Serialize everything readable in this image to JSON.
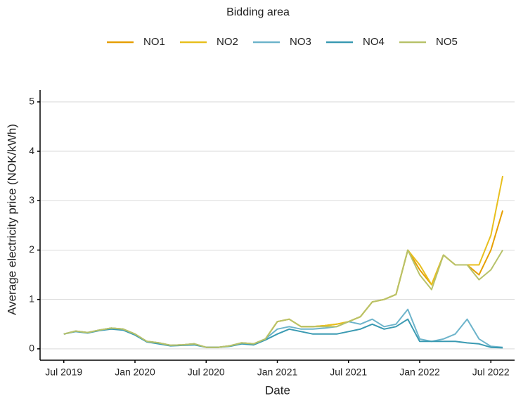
{
  "chart_data": {
    "type": "line",
    "legend_title": "Bidding area",
    "legend_position": "top",
    "x_label": "Date",
    "y_label": "Average electricity price (NOK/kWh)",
    "x": [
      "2019-07",
      "2019-08",
      "2019-09",
      "2019-10",
      "2019-11",
      "2019-12",
      "2020-01",
      "2020-02",
      "2020-03",
      "2020-04",
      "2020-05",
      "2020-06",
      "2020-07",
      "2020-08",
      "2020-09",
      "2020-10",
      "2020-11",
      "2020-12",
      "2021-01",
      "2021-02",
      "2021-03",
      "2021-04",
      "2021-05",
      "2021-06",
      "2021-07",
      "2021-08",
      "2021-09",
      "2021-10",
      "2021-11",
      "2021-12",
      "2022-01",
      "2022-02",
      "2022-03",
      "2022-04",
      "2022-05",
      "2022-06",
      "2022-07",
      "2022-08"
    ],
    "series": [
      {
        "name": "NO1",
        "color": "#e69f00",
        "values": [
          0.3,
          0.36,
          0.33,
          0.38,
          0.42,
          0.4,
          0.3,
          0.15,
          0.12,
          0.07,
          0.08,
          0.1,
          0.03,
          0.03,
          0.06,
          0.12,
          0.1,
          0.2,
          0.55,
          0.6,
          0.45,
          0.45,
          0.47,
          0.5,
          0.55,
          0.65,
          0.95,
          1.0,
          1.1,
          2.0,
          1.6,
          1.3,
          1.9,
          1.7,
          1.7,
          1.5,
          2.0,
          2.8
        ]
      },
      {
        "name": "NO2",
        "color": "#e8bf1e",
        "values": [
          0.3,
          0.36,
          0.33,
          0.38,
          0.42,
          0.4,
          0.3,
          0.15,
          0.12,
          0.07,
          0.08,
          0.1,
          0.03,
          0.03,
          0.06,
          0.12,
          0.1,
          0.2,
          0.55,
          0.6,
          0.45,
          0.45,
          0.47,
          0.5,
          0.55,
          0.65,
          0.95,
          1.0,
          1.1,
          2.0,
          1.7,
          1.3,
          1.9,
          1.7,
          1.7,
          1.7,
          2.3,
          3.5
        ]
      },
      {
        "name": "NO3",
        "color": "#6db4cb",
        "values": [
          0.3,
          0.36,
          0.33,
          0.38,
          0.42,
          0.4,
          0.3,
          0.15,
          0.12,
          0.07,
          0.08,
          0.1,
          0.03,
          0.03,
          0.06,
          0.12,
          0.1,
          0.2,
          0.4,
          0.45,
          0.4,
          0.4,
          0.42,
          0.45,
          0.55,
          0.5,
          0.6,
          0.45,
          0.5,
          0.8,
          0.2,
          0.15,
          0.2,
          0.3,
          0.6,
          0.2,
          0.05,
          0.03
        ]
      },
      {
        "name": "NO4",
        "color": "#3a9ab2",
        "values": [
          0.3,
          0.35,
          0.32,
          0.37,
          0.4,
          0.38,
          0.28,
          0.14,
          0.1,
          0.06,
          0.07,
          0.08,
          0.03,
          0.03,
          0.05,
          0.1,
          0.08,
          0.18,
          0.3,
          0.4,
          0.35,
          0.3,
          0.3,
          0.3,
          0.35,
          0.4,
          0.5,
          0.4,
          0.45,
          0.6,
          0.15,
          0.15,
          0.15,
          0.15,
          0.12,
          0.1,
          0.03,
          0.02
        ]
      },
      {
        "name": "NO5",
        "color": "#b7c26a",
        "values": [
          0.3,
          0.36,
          0.33,
          0.38,
          0.42,
          0.4,
          0.3,
          0.15,
          0.12,
          0.07,
          0.08,
          0.1,
          0.03,
          0.03,
          0.06,
          0.12,
          0.1,
          0.2,
          0.55,
          0.6,
          0.45,
          0.45,
          0.45,
          0.45,
          0.55,
          0.65,
          0.95,
          1.0,
          1.1,
          2.0,
          1.5,
          1.2,
          1.9,
          1.7,
          1.7,
          1.4,
          1.6,
          2.0
        ]
      }
    ],
    "xlim": [
      "2019-05",
      "2022-09"
    ],
    "xticks": [
      {
        "value": "2019-07",
        "label": "Jul 2019"
      },
      {
        "value": "2020-01",
        "label": "Jan 2020"
      },
      {
        "value": "2020-07",
        "label": "Jul 2020"
      },
      {
        "value": "2021-01",
        "label": "Jan 2021"
      },
      {
        "value": "2021-07",
        "label": "Jul 2021"
      },
      {
        "value": "2022-01",
        "label": "Jan 2022"
      },
      {
        "value": "2022-07",
        "label": "Jul 2022"
      }
    ],
    "ylim": [
      -0.23,
      5.24
    ],
    "yticks": [
      0,
      1,
      2,
      3,
      4,
      5
    ],
    "grid": true
  }
}
